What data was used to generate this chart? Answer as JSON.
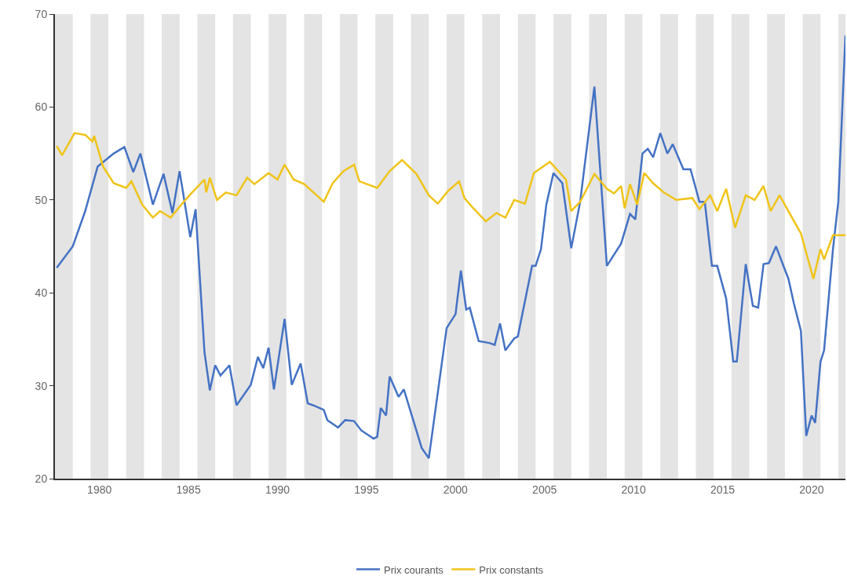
{
  "chart_data": {
    "type": "line",
    "xlim": [
      1977.5,
      2021.9
    ],
    "xticks": [
      1980,
      1985,
      1990,
      1995,
      2000,
      2005,
      2010,
      2015,
      2020
    ],
    "ylim": [
      20,
      70
    ],
    "yticks": [
      20,
      30,
      40,
      50,
      60,
      70
    ],
    "grid": false,
    "legend": "bottom",
    "marker": "none",
    "line_style": "solid",
    "bands": [
      {
        "axis": "x",
        "from": 1977.5,
        "to": 1978.5,
        "color": "#e4e4e4"
      },
      {
        "axis": "x",
        "from": 1979.5,
        "to": 1980.5,
        "color": "#e4e4e4"
      },
      {
        "axis": "x",
        "from": 1981.5,
        "to": 1982.5,
        "color": "#e4e4e4"
      },
      {
        "axis": "x",
        "from": 1983.5,
        "to": 1984.5,
        "color": "#e4e4e4"
      },
      {
        "axis": "x",
        "from": 1985.5,
        "to": 1986.5,
        "color": "#e4e4e4"
      },
      {
        "axis": "x",
        "from": 1987.5,
        "to": 1988.5,
        "color": "#e4e4e4"
      },
      {
        "axis": "x",
        "from": 1989.5,
        "to": 1990.5,
        "color": "#e4e4e4"
      },
      {
        "axis": "x",
        "from": 1991.5,
        "to": 1992.5,
        "color": "#e4e4e4"
      },
      {
        "axis": "x",
        "from": 1993.5,
        "to": 1994.5,
        "color": "#e4e4e4"
      },
      {
        "axis": "x",
        "from": 1995.5,
        "to": 1996.5,
        "color": "#e4e4e4"
      },
      {
        "axis": "x",
        "from": 1997.5,
        "to": 1998.5,
        "color": "#e4e4e4"
      },
      {
        "axis": "x",
        "from": 1999.5,
        "to": 2000.5,
        "color": "#e4e4e4"
      },
      {
        "axis": "x",
        "from": 2001.5,
        "to": 2002.5,
        "color": "#e4e4e4"
      },
      {
        "axis": "x",
        "from": 2003.5,
        "to": 2004.5,
        "color": "#e4e4e4"
      },
      {
        "axis": "x",
        "from": 2005.5,
        "to": 2006.5,
        "color": "#e4e4e4"
      },
      {
        "axis": "x",
        "from": 2007.5,
        "to": 2008.5,
        "color": "#e4e4e4"
      },
      {
        "axis": "x",
        "from": 2009.5,
        "to": 2010.5,
        "color": "#e4e4e4"
      },
      {
        "axis": "x",
        "from": 2011.5,
        "to": 2012.5,
        "color": "#e4e4e4"
      },
      {
        "axis": "x",
        "from": 2013.5,
        "to": 2014.5,
        "color": "#e4e4e4"
      },
      {
        "axis": "x",
        "from": 2015.5,
        "to": 2016.5,
        "color": "#e4e4e4"
      },
      {
        "axis": "x",
        "from": 2017.5,
        "to": 2018.5,
        "color": "#e4e4e4"
      },
      {
        "axis": "x",
        "from": 2019.5,
        "to": 2020.5,
        "color": "#e4e4e4"
      },
      {
        "axis": "x",
        "from": 2021.5,
        "to": 2021.9,
        "color": "#e4e4e4"
      }
    ],
    "series": [
      {
        "name": "Prix courants",
        "color": "#4472c4",
        "x": [
          1977.6,
          1978.5,
          1979.2,
          1979.9,
          1980.8,
          1981.4,
          1981.9,
          1982.3,
          1983.0,
          1983.6,
          1984.1,
          1984.5,
          1985.1,
          1985.4,
          1985.9,
          1986.2,
          1986.5,
          1986.8,
          1987.3,
          1987.7,
          1988.5,
          1988.9,
          1989.2,
          1989.5,
          1989.8,
          1990.4,
          1990.8,
          1991.3,
          1991.7,
          1992.0,
          1992.6,
          1992.8,
          1993.4,
          1993.8,
          1994.3,
          1994.7,
          1995.4,
          1995.6,
          1995.8,
          1996.1,
          1996.3,
          1996.8,
          1997.1,
          1998.1,
          1998.5,
          1999.5,
          2000.0,
          2000.3,
          2000.6,
          2000.8,
          2001.3,
          2001.9,
          2002.2,
          2002.5,
          2002.8,
          2003.3,
          2003.5,
          2004.3,
          2004.5,
          2004.8,
          2005.1,
          2005.5,
          2006.0,
          2006.5,
          2007.0,
          2007.8,
          2008.5,
          2009.3,
          2009.8,
          2010.1,
          2010.5,
          2010.8,
          2011.1,
          2011.5,
          2011.9,
          2012.2,
          2012.8,
          2013.2,
          2013.7,
          2014.0,
          2014.4,
          2014.7,
          2015.2,
          2015.6,
          2015.8,
          2016.3,
          2016.7,
          2017.0,
          2017.3,
          2017.6,
          2018.0,
          2018.7,
          2019.0,
          2019.4,
          2019.7,
          2020.0,
          2020.2,
          2020.5,
          2020.7,
          2021.2,
          2021.5,
          2021.9
        ],
        "values": [
          42.7,
          45.0,
          48.8,
          53.6,
          55.0,
          55.7,
          53.0,
          55.0,
          49.5,
          52.8,
          48.6,
          53.1,
          46.0,
          49.0,
          33.6,
          29.5,
          32.2,
          31.1,
          32.2,
          27.9,
          30.1,
          33.1,
          31.9,
          34.1,
          29.6,
          37.2,
          30.1,
          32.4,
          28.1,
          27.9,
          27.4,
          26.3,
          25.5,
          26.3,
          26.2,
          25.2,
          24.3,
          24.5,
          27.6,
          26.8,
          31.0,
          28.8,
          29.6,
          23.3,
          22.2,
          36.2,
          37.7,
          42.4,
          38.2,
          38.4,
          34.8,
          34.6,
          34.4,
          36.7,
          33.8,
          35.1,
          35.3,
          42.9,
          42.9,
          44.7,
          49.5,
          52.9,
          51.8,
          44.8,
          49.8,
          62.2,
          42.9,
          45.3,
          48.5,
          47.9,
          55.0,
          55.5,
          54.6,
          57.2,
          55.0,
          56.0,
          53.3,
          53.3,
          49.8,
          49.8,
          42.9,
          42.9,
          39.4,
          32.6,
          32.6,
          43.1,
          38.6,
          38.4,
          43.1,
          43.2,
          45.0,
          41.5,
          38.9,
          35.9,
          24.6,
          26.8,
          26.0,
          32.6,
          33.8,
          44.7,
          49.8,
          67.7
        ]
      },
      {
        "name": "Prix constants",
        "color": "#f0c419",
        "x": [
          1977.6,
          1977.9,
          1978.6,
          1979.2,
          1979.6,
          1979.7,
          1980.2,
          1980.8,
          1981.5,
          1981.8,
          1982.4,
          1983.0,
          1983.4,
          1984.0,
          1984.6,
          1985.2,
          1985.9,
          1986.0,
          1986.2,
          1986.6,
          1987.1,
          1987.7,
          1988.3,
          1988.7,
          1989.5,
          1990.0,
          1990.4,
          1990.9,
          1991.5,
          1992.2,
          1992.6,
          1993.1,
          1993.7,
          1994.3,
          1994.6,
          1995.6,
          1996.3,
          1997.0,
          1997.8,
          1998.5,
          1999.0,
          1999.6,
          2000.2,
          2000.5,
          2001.0,
          2001.7,
          2002.3,
          2002.8,
          2003.3,
          2003.9,
          2004.4,
          2005.3,
          2006.2,
          2006.5,
          2007.0,
          2007.8,
          2008.5,
          2008.9,
          2009.3,
          2009.5,
          2009.8,
          2010.2,
          2010.6,
          2011.1,
          2011.7,
          2012.4,
          2013.3,
          2013.7,
          2014.3,
          2014.7,
          2015.2,
          2015.7,
          2016.3,
          2016.8,
          2017.3,
          2017.7,
          2018.2,
          2018.9,
          2019.4,
          2020.1,
          2020.5,
          2020.7,
          2021.2,
          2021.9
        ],
        "values": [
          55.8,
          54.8,
          57.2,
          57.0,
          56.3,
          56.9,
          53.6,
          51.8,
          51.3,
          52.0,
          49.5,
          48.1,
          48.8,
          48.1,
          49.5,
          50.8,
          52.2,
          50.8,
          52.4,
          50.0,
          50.8,
          50.5,
          52.4,
          51.7,
          52.9,
          52.2,
          53.8,
          52.2,
          51.7,
          50.5,
          49.8,
          51.8,
          53.1,
          53.8,
          52.0,
          51.3,
          53.1,
          54.3,
          52.8,
          50.5,
          49.6,
          51.0,
          52.0,
          50.2,
          49.1,
          47.7,
          48.6,
          48.1,
          50.0,
          49.6,
          52.9,
          54.1,
          52.2,
          48.8,
          49.8,
          52.8,
          51.2,
          50.7,
          51.5,
          49.1,
          51.7,
          49.5,
          52.9,
          51.8,
          50.8,
          50.0,
          50.2,
          49.0,
          50.5,
          48.8,
          51.2,
          47.0,
          50.5,
          50.0,
          51.5,
          48.8,
          50.5,
          48.1,
          46.4,
          41.5,
          44.7,
          43.6,
          46.2,
          46.2
        ]
      }
    ]
  }
}
